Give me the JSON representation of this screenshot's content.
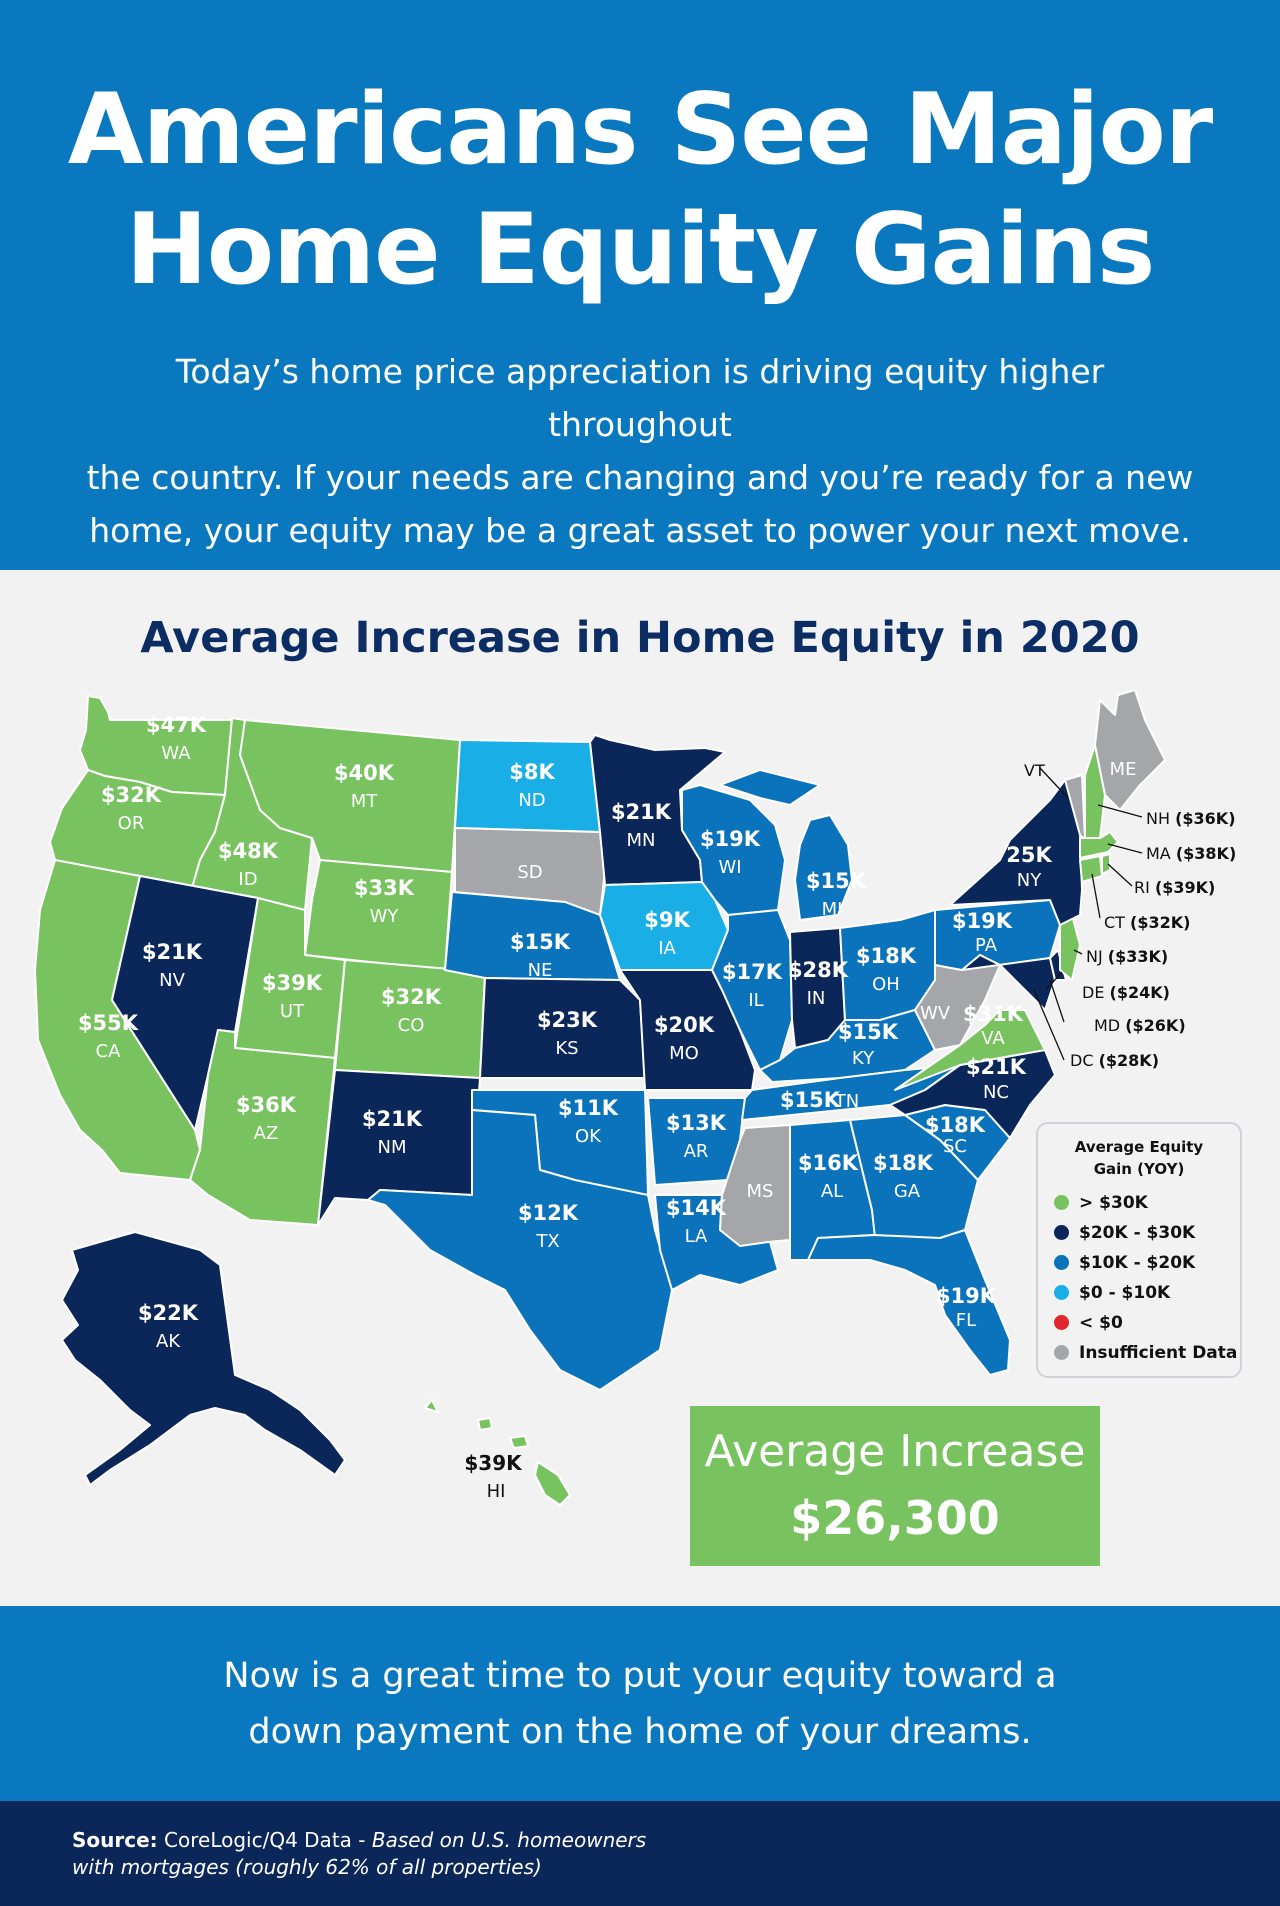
{
  "header": {
    "title_line1": "Americans See Major",
    "title_line2": "Home Equity Gains",
    "intro_line1": "Today’s home price appreciation is driving equity higher throughout",
    "intro_line2": "the country. If your needs are changing and you’re ready for a new",
    "intro_line3": "home, your equity may be a great asset to power your next move."
  },
  "map": {
    "title": "Average Increase in Home Equity in 2020",
    "colors": {
      "gt30": "#78c25f",
      "k20_30": "#0b2658",
      "k10_20": "#0a73bb",
      "k0_10": "#19aee6",
      "lt0": "#e0262f",
      "insufficient": "#a4a6aa"
    },
    "states": {
      "WA": {
        "abbr": "WA",
        "value": "$47K"
      },
      "OR": {
        "abbr": "OR",
        "value": "$32K"
      },
      "CA": {
        "abbr": "CA",
        "value": "$55K"
      },
      "ID": {
        "abbr": "ID",
        "value": "$48K"
      },
      "NV": {
        "abbr": "NV",
        "value": "$21K"
      },
      "MT": {
        "abbr": "MT",
        "value": "$40K"
      },
      "WY": {
        "abbr": "WY",
        "value": "$33K"
      },
      "UT": {
        "abbr": "UT",
        "value": "$39K"
      },
      "CO": {
        "abbr": "CO",
        "value": "$32K"
      },
      "AZ": {
        "abbr": "AZ",
        "value": "$36K"
      },
      "NM": {
        "abbr": "NM",
        "value": "$21K"
      },
      "ND": {
        "abbr": "ND",
        "value": "$8K"
      },
      "SD": {
        "abbr": "SD",
        "value": ""
      },
      "NE": {
        "abbr": "NE",
        "value": "$15K"
      },
      "KS": {
        "abbr": "KS",
        "value": "$23K"
      },
      "OK": {
        "abbr": "OK",
        "value": "$11K"
      },
      "TX": {
        "abbr": "TX",
        "value": "$12K"
      },
      "MN": {
        "abbr": "MN",
        "value": "$21K"
      },
      "IA": {
        "abbr": "IA",
        "value": "$9K"
      },
      "MO": {
        "abbr": "MO",
        "value": "$20K"
      },
      "AR": {
        "abbr": "AR",
        "value": "$13K"
      },
      "LA": {
        "abbr": "LA",
        "value": "$14K"
      },
      "WI": {
        "abbr": "WI",
        "value": "$19K"
      },
      "IL": {
        "abbr": "IL",
        "value": "$17K"
      },
      "MI": {
        "abbr": "MI",
        "value": "$15K"
      },
      "IN": {
        "abbr": "IN",
        "value": "$28K"
      },
      "OH": {
        "abbr": "OH",
        "value": "$18K"
      },
      "KY": {
        "abbr": "KY",
        "value": "$15K"
      },
      "TN": {
        "abbr": "TN",
        "value": "$15K"
      },
      "MS": {
        "abbr": "MS",
        "value": ""
      },
      "AL": {
        "abbr": "AL",
        "value": "$16K"
      },
      "GA": {
        "abbr": "GA",
        "value": "$18K"
      },
      "FL": {
        "abbr": "FL",
        "value": "$19K"
      },
      "SC": {
        "abbr": "SC",
        "value": "$18K"
      },
      "NC": {
        "abbr": "NC",
        "value": "$21K"
      },
      "VA": {
        "abbr": "VA",
        "value": "$31K"
      },
      "WV": {
        "abbr": "WV",
        "value": ""
      },
      "PA": {
        "abbr": "PA",
        "value": "$19K"
      },
      "NY": {
        "abbr": "NY",
        "value": "25K"
      },
      "ME": {
        "abbr": "ME",
        "value": ""
      },
      "VT": {
        "abbr": "VT",
        "value": ""
      },
      "AK": {
        "abbr": "AK",
        "value": "$22K"
      },
      "HI": {
        "abbr": "HI",
        "value": "$39K"
      }
    },
    "callouts": {
      "NH": {
        "abbr": "NH",
        "value": "($36K)"
      },
      "MA": {
        "abbr": "MA",
        "value": "($38K)"
      },
      "RI": {
        "abbr": "RI",
        "value": "($39K)"
      },
      "CT": {
        "abbr": "CT",
        "value": "($32K)"
      },
      "NJ": {
        "abbr": "NJ",
        "value": "($33K)"
      },
      "DE": {
        "abbr": "DE",
        "value": "($24K)"
      },
      "MD": {
        "abbr": "MD",
        "value": "($26K)"
      },
      "DC": {
        "abbr": "DC",
        "value": "($28K)"
      }
    }
  },
  "legend": {
    "title_line1": "Average Equity",
    "title_line2": "Gain (YOY)",
    "items": [
      {
        "label": "> $30K",
        "color": "#78c25f"
      },
      {
        "label": "$20K - $30K",
        "color": "#0b2658"
      },
      {
        "label": "$10K - $20K",
        "color": "#0a73bb"
      },
      {
        "label": "$0 - $10K",
        "color": "#19aee6"
      },
      {
        "label": "< $0",
        "color": "#e0262f"
      },
      {
        "label": "Insufficient Data",
        "color": "#a4a6aa"
      }
    ]
  },
  "average": {
    "label": "Average Increase",
    "value": "$26,300"
  },
  "cta": {
    "line1": "Now is a great time to put your equity toward a",
    "line2": "down payment on the home of your dreams."
  },
  "footer": {
    "source_label": "Source:",
    "source_text": "CoreLogic/Q4 Data - ",
    "source_italic1": "Based on U.S. homeowners",
    "source_italic2": "with mortgages (roughly 62% of all properties)"
  }
}
